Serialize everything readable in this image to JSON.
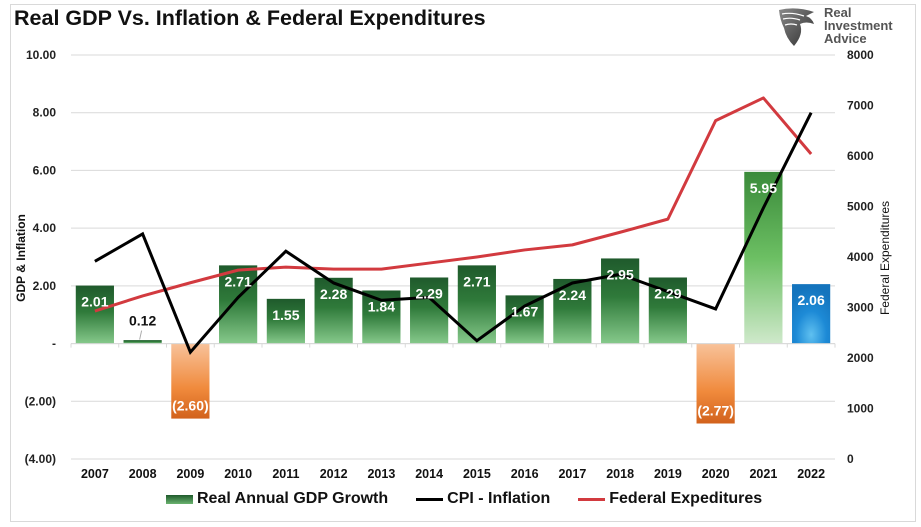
{
  "title": "Real GDP Vs. Inflation & Federal Expenditures",
  "logo": {
    "icon": "eagle-shield-icon",
    "lines": [
      "Real",
      "Investment",
      "Advice"
    ]
  },
  "legend": {
    "gdp": "Real Annual GDP Growth",
    "cpi": "CPI - Inflation",
    "fed": "Federal Expeditures"
  },
  "colors": {
    "gdp_top": "#1f5a2c",
    "gdp_bottom": "#7cc182",
    "negative_top": "#f7b98a",
    "negative_bottom": "#d9661f",
    "highlight_2021_top": "#3f8f3f",
    "highlight_2021_bottom": "#c8e6c4",
    "current_2022": "#1b84cf",
    "cpi": "#000000",
    "fed": "#d23a3f",
    "grid": "#d9d9d9"
  },
  "chart_data": {
    "type": "bar+line",
    "title": "Real GDP Vs. Inflation & Federal Expenditures",
    "xlabel": "",
    "ylabel": "GDP & Inflation",
    "y2label": "Federal Expenditures",
    "ylim": [
      -4,
      10
    ],
    "y2lim": [
      0,
      8000
    ],
    "yticks": [
      10,
      8,
      6,
      4,
      2,
      0,
      -2,
      -4
    ],
    "ytick_labels": [
      "10.00",
      "8.00",
      "6.00",
      "4.00",
      "2.00",
      "-",
      "(2.00)",
      "(4.00)"
    ],
    "y2ticks": [
      8000,
      7000,
      6000,
      5000,
      4000,
      3000,
      2000,
      1000,
      0
    ],
    "y2tick_labels": [
      "8000",
      "7000",
      "6000",
      "5000",
      "4000",
      "3000",
      "2000",
      "1000",
      "0"
    ],
    "grid": true,
    "legend_position": "bottom",
    "categories": [
      "2007",
      "2008",
      "2009",
      "2010",
      "2011",
      "2012",
      "2013",
      "2014",
      "2015",
      "2016",
      "2017",
      "2018",
      "2019",
      "2020",
      "2021",
      "2022"
    ],
    "series": [
      {
        "name": "Real Annual GDP Growth",
        "type": "bar",
        "axis": "left",
        "values": [
          2.01,
          0.12,
          -2.6,
          2.71,
          1.55,
          2.28,
          1.84,
          2.29,
          2.71,
          1.67,
          2.24,
          2.95,
          2.29,
          -2.77,
          5.95,
          2.06
        ],
        "labels": [
          "2.01",
          "0.12",
          "(2.60)",
          "2.71",
          "1.55",
          "2.28",
          "1.84",
          "2.29",
          "2.71",
          "1.67",
          "2.24",
          "2.95",
          "2.29",
          "(2.77)",
          "5.95",
          "2.06"
        ]
      },
      {
        "name": "CPI - Inflation",
        "type": "line",
        "axis": "left",
        "values": [
          2.85,
          3.8,
          -0.3,
          1.6,
          3.2,
          2.1,
          1.5,
          1.6,
          0.1,
          1.3,
          2.1,
          2.4,
          1.8,
          1.2,
          4.7,
          8.0
        ]
      },
      {
        "name": "Federal Expeditures",
        "type": "line",
        "axis": "right",
        "values": [
          2930,
          3230,
          3490,
          3740,
          3800,
          3760,
          3760,
          3880,
          4000,
          4140,
          4240,
          4490,
          4750,
          6700,
          7150,
          6040
        ]
      }
    ]
  }
}
